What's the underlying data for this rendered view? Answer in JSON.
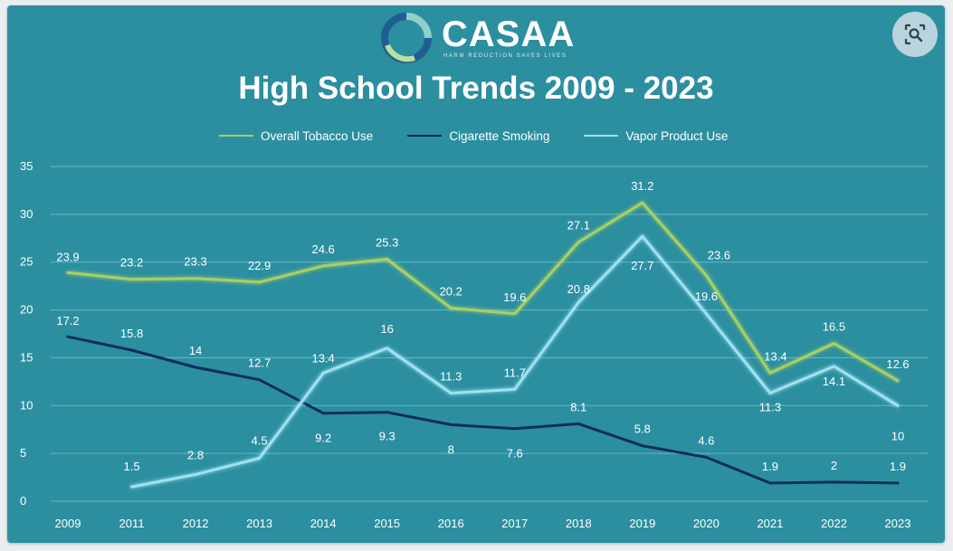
{
  "header": {
    "logo_text": "CASAA",
    "logo_tagline": "HARM REDUCTION SAVES LIVES"
  },
  "lens_button": {
    "icon": "visual-search-icon"
  },
  "colors": {
    "background": "#2b8fa0",
    "overall": "#a9cf63",
    "cigarette": "#0e2d57",
    "vapor": "#9fe1ee",
    "grid": "#7cc6d2",
    "text": "#ffffff"
  },
  "chart_data": {
    "type": "line",
    "title": "High School Trends 2009 - 2023",
    "xlabel": "",
    "ylabel": "",
    "ylim": [
      0,
      35
    ],
    "yticks": [
      0,
      5,
      10,
      15,
      20,
      25,
      30,
      35
    ],
    "grid": true,
    "legend_position": "top",
    "categories": [
      "2009",
      "2011",
      "2012",
      "2013",
      "2014",
      "2015",
      "2016",
      "2017",
      "2018",
      "2019",
      "2020",
      "2021",
      "2022",
      "2023"
    ],
    "series": [
      {
        "name": "Overall Tobacco Use",
        "color_key": "overall",
        "values": [
          23.9,
          23.2,
          23.3,
          22.9,
          24.6,
          25.3,
          20.2,
          19.6,
          27.1,
          31.2,
          23.6,
          13.4,
          16.5,
          12.6
        ]
      },
      {
        "name": "Cigarette Smoking",
        "color_key": "cigarette",
        "values": [
          17.2,
          15.8,
          14,
          12.7,
          9.2,
          9.3,
          8,
          7.6,
          8.1,
          5.8,
          4.6,
          1.9,
          2,
          1.9
        ]
      },
      {
        "name": "Vapor Product Use",
        "color_key": "vapor",
        "values": [
          null,
          1.5,
          2.8,
          4.5,
          13.4,
          16,
          11.3,
          11.7,
          20.8,
          27.7,
          19.6,
          11.3,
          14.1,
          10
        ]
      }
    ]
  }
}
